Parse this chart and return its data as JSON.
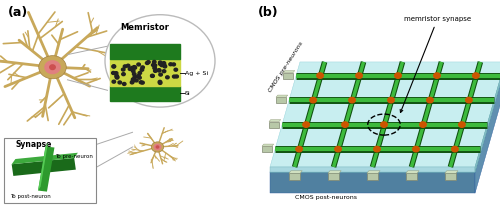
{
  "fig_width": 5.0,
  "fig_height": 2.1,
  "dpi": 100,
  "bg_color": "#ffffff",
  "label_a": "(a)",
  "label_b": "(b)",
  "memristor_label": "Memristor",
  "ag_si_label": "Ag + Si",
  "si_label": "Si",
  "synapse_label": "Synapse",
  "pre_neuron_label": "To pre-neuron",
  "post_neuron_label": "To post-neuron",
  "memristor_synapse_label": "memristor synapse",
  "cmos_pre_label": "CMOS pre-neurons",
  "cmos_post_label": "CMOS post-neurons",
  "green_dark": "#1e7a1e",
  "green_bright": "#3dba3d",
  "green_top": "#55cc55",
  "yellow_green": "#ccd844",
  "neuron_color": "#c8a85a",
  "neuron_body": "#d4bc6a",
  "neuron_soma": "#e08080",
  "cyan_top": "#a0d8dc",
  "cyan_mid": "#78c0c8",
  "blue_side": "#6090b0",
  "blue_front": "#5080a0",
  "chip_color": "#b8c8a8",
  "chip_dark": "#90a880",
  "orange_dot": "#cc5500",
  "gray_line": "#aaaaaa",
  "circle_edge": "#bbbbbb"
}
